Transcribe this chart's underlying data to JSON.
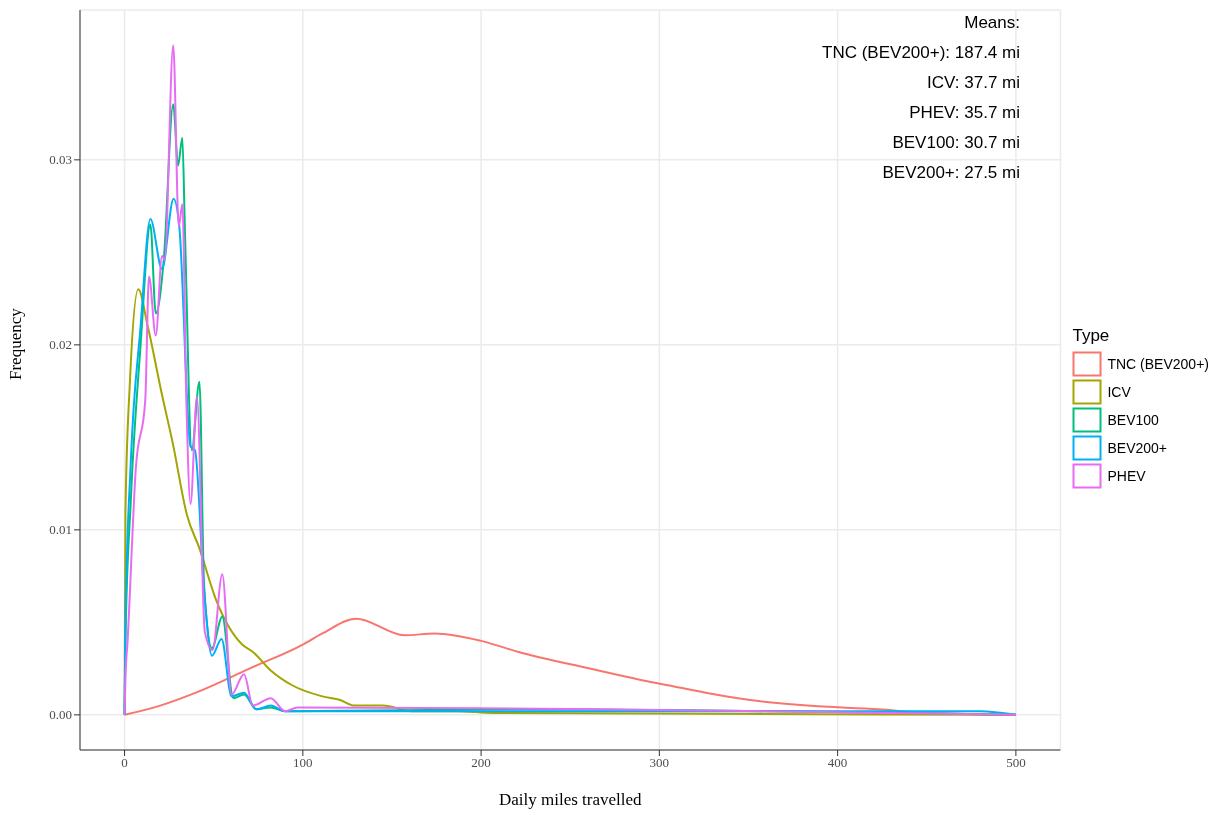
{
  "chart_data": {
    "type": "line",
    "xlabel": "Daily miles travelled",
    "ylabel": "Frequency",
    "legend_title": "Type",
    "legend": "right",
    "grid": true,
    "marker": "none",
    "line_style": "solid",
    "xlim": [
      -25,
      525
    ],
    "xticks": [
      0,
      100,
      200,
      300,
      400,
      500
    ],
    "ylim": [
      -0.0019,
      0.0381
    ],
    "yticks": [
      {
        "value": 0,
        "label": "0.00"
      },
      {
        "value": 0.01,
        "label": "0.01"
      },
      {
        "value": 0.02,
        "label": "0.02"
      },
      {
        "value": 0.03,
        "label": "0.03"
      }
    ],
    "annotations": [
      "Means:",
      "TNC (BEV200+): 187.4 mi",
      "ICV: 37.7 mi",
      "PHEV: 35.7 mi",
      "BEV100: 30.7 mi",
      "BEV200+: 27.5 mi"
    ],
    "series": [
      {
        "name": "TNC (BEV200+)",
        "color": "#f8766d",
        "x": [
          0,
          20,
          40,
          70,
          100,
          111,
          130,
          157,
          174,
          200,
          221,
          261,
          289,
          305,
          326,
          351,
          383,
          423,
          450,
          500
        ],
        "values": [
          0,
          0.0005,
          0.0012,
          0.0025,
          0.0038,
          0.0044,
          0.0052,
          0.0043,
          0.0044,
          0.004,
          0.0034,
          0.0025,
          0.0019,
          0.0016,
          0.0012,
          0.0008,
          0.0005,
          0.0003,
          0.0001,
          0
        ]
      },
      {
        "name": "ICV",
        "color": "#a3a500",
        "x": [
          0,
          0.5,
          3,
          7.7,
          13,
          21,
          27,
          35,
          42,
          51,
          66,
          72,
          82,
          94,
          111,
          121,
          129,
          145,
          161,
          186,
          207,
          500
        ],
        "values": [
          0,
          0.011,
          0.018,
          0.023,
          0.021,
          0.0173,
          0.0147,
          0.0108,
          0.009,
          0.0063,
          0.0038,
          0.0034,
          0.0024,
          0.0016,
          0.001,
          0.0008,
          0.0005,
          0.0005,
          0.0002,
          0.0002,
          0.0001,
          0
        ]
      },
      {
        "name": "BEV100",
        "color": "#00bf7d",
        "x": [
          0,
          0.5,
          3.5,
          9,
          14.5,
          17.5,
          22,
          27.3,
          30,
          32.4,
          33.8,
          37.7,
          42,
          44.6,
          49,
          54.8,
          61,
          67,
          74,
          82,
          90,
          220,
          500
        ],
        "values": [
          0,
          0.004,
          0.0116,
          0.02,
          0.0265,
          0.0217,
          0.0246,
          0.033,
          0.0297,
          0.0312,
          0.0264,
          0.0143,
          0.018,
          0.007,
          0.0036,
          0.0053,
          0.0009,
          0.0011,
          0.0003,
          0.0004,
          0.0002,
          0.0003,
          0
        ]
      },
      {
        "name": "BEV200+",
        "color": "#00b0f6",
        "x": [
          0,
          0.5,
          3.5,
          9,
          14.5,
          21,
          27.5,
          30.7,
          37,
          39.5,
          44.6,
          49,
          54.4,
          60,
          67,
          74,
          82,
          90,
          480,
          500
        ],
        "values": [
          0,
          0.005,
          0.0137,
          0.021,
          0.0268,
          0.0241,
          0.0279,
          0.0264,
          0.0145,
          0.0143,
          0.0067,
          0.0032,
          0.0041,
          0.001,
          0.0012,
          0.0003,
          0.0005,
          0.0002,
          0.0002,
          0
        ]
      },
      {
        "name": "PHEV",
        "color": "#e76bf3",
        "x": [
          0,
          0.5,
          1.7,
          6.3,
          11.6,
          13.7,
          17.5,
          21,
          22.5,
          27.3,
          30.4,
          32.4,
          34.7,
          37,
          40.6,
          45,
          49.4,
          54.8,
          60,
          67,
          72,
          82,
          90,
          97,
          500
        ],
        "values": [
          0,
          0.002,
          0.004,
          0.0133,
          0.017,
          0.0237,
          0.0205,
          0.0248,
          0.0246,
          0.0362,
          0.0264,
          0.0276,
          0.0168,
          0.0114,
          0.0172,
          0.0045,
          0.0035,
          0.0076,
          0.0011,
          0.0022,
          0.0005,
          0.0009,
          0.0002,
          0.0004,
          0
        ]
      }
    ]
  }
}
